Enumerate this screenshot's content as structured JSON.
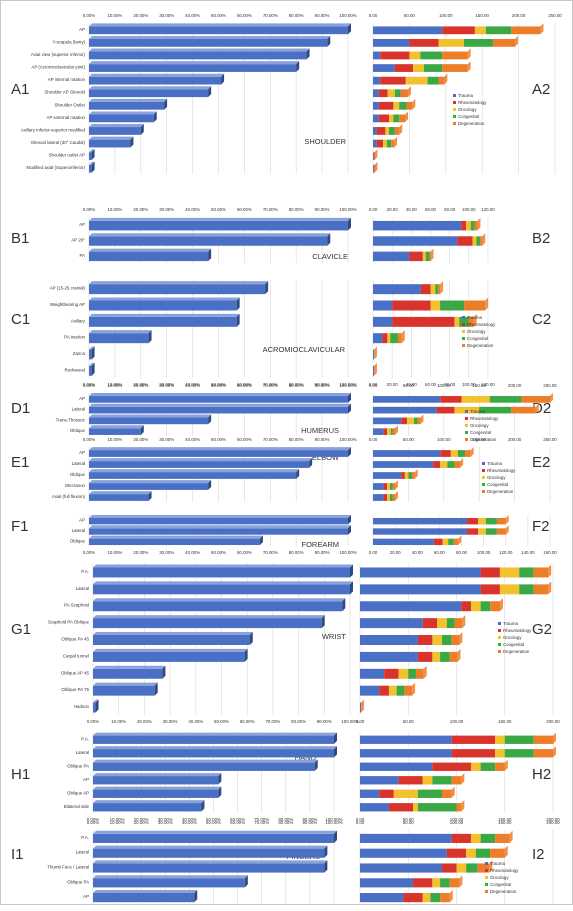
{
  "colors": {
    "bar": "#4a70c6",
    "bar_top": "#7b98dc",
    "bar_side": "#2c4a8c",
    "grid": "#d8d8d8",
    "text": "#333333",
    "trauma": "#4a70c6",
    "rheumatology": "#d9342b",
    "oncology": "#f2c12e",
    "congenital": "#3aa845",
    "degeneration": "#ee7d28"
  },
  "chart_data": [
    {
      "type": "bar",
      "panel": "A1",
      "title": "SHOULDER",
      "orientation": "horizontal",
      "categories": [
        "AP",
        "Y-scapula (lamy)",
        "Axial view (superior inferior)",
        "AP (Acromioclavicular joint)",
        "AP internal rotation",
        "Shoulder AP Glenoid",
        "Shoulder Outlet",
        "AP external rotation",
        "Axillary Inferior-superior modified",
        "Glenoid lateral (30° Caudal)",
        "Shoulder outlet AP",
        "Modified axial (Superoinferior)"
      ],
      "values": [
        100,
        92,
        84,
        80,
        51,
        46,
        29,
        25,
        20,
        16,
        1,
        1
      ],
      "xlim": [
        0,
        100
      ],
      "tick_labels": [
        "0.00%",
        "10.00%",
        "20.00%",
        "30.00%",
        "40.00%",
        "50.00%",
        "60.00%",
        "70.00%",
        "80.00%",
        "90.00%",
        "100.00%"
      ]
    },
    {
      "type": "bar",
      "panel": "A2",
      "stacked": true,
      "orientation": "horizontal",
      "categories": [
        "AP",
        "Y-scapula (lamy)",
        "Axial view (superior inferior)",
        "AP (Acromioclavicular joint)",
        "AP internal rotation",
        "Shoulder AP Glenoid",
        "Shoulder Outlet",
        "AP external rotation",
        "Axillary Inferior-superior modified",
        "Glenoid lateral (30° Caudal)",
        "Shoulder outlet AP",
        "Modified axial (Superoinferior)"
      ],
      "series": [
        {
          "name": "Trauma",
          "values": [
            95,
            50,
            10,
            30,
            10,
            8,
            8,
            8,
            5,
            5,
            1,
            1
          ]
        },
        {
          "name": "Rheumatology",
          "values": [
            45,
            40,
            40,
            25,
            35,
            12,
            20,
            14,
            12,
            9,
            1,
            1
          ]
        },
        {
          "name": "Oncology",
          "values": [
            15,
            35,
            15,
            15,
            30,
            10,
            8,
            6,
            5,
            5,
            0,
            0
          ]
        },
        {
          "name": "Congenital",
          "values": [
            35,
            40,
            30,
            25,
            15,
            8,
            10,
            8,
            8,
            6,
            0,
            0
          ]
        },
        {
          "name": "Degeneration",
          "values": [
            40,
            30,
            35,
            35,
            8,
            10,
            8,
            8,
            6,
            4,
            0,
            0
          ]
        }
      ],
      "xlim": [
        0,
        250
      ],
      "tick_labels": [
        "0.00",
        "50.00",
        "100.00",
        "150.00",
        "200.00",
        "250.00"
      ],
      "legend": "right"
    },
    {
      "type": "bar",
      "panel": "B1",
      "title": "CLAVICLE",
      "orientation": "horizontal",
      "categories": [
        "AP",
        "AP 20°",
        "PA"
      ],
      "values": [
        100,
        92,
        46
      ],
      "xlim": [
        0,
        100
      ],
      "tick_labels": [
        "0.00%",
        "10.00%",
        "20.00%",
        "30.00%",
        "40.00%",
        "50.00%",
        "60.00%",
        "70.00%",
        "80.00%",
        "90.00%",
        "100.00%"
      ]
    },
    {
      "type": "bar",
      "panel": "B2",
      "stacked": true,
      "orientation": "horizontal",
      "categories": [
        "AP",
        "AP 20°",
        "PA"
      ],
      "series": [
        {
          "name": "Trauma",
          "values": [
            92,
            88,
            38
          ]
        },
        {
          "name": "Rheumatology",
          "values": [
            5,
            16,
            14
          ]
        },
        {
          "name": "Oncology",
          "values": [
            5,
            4,
            3
          ]
        },
        {
          "name": "Congenital",
          "values": [
            4,
            4,
            4
          ]
        },
        {
          "name": "Degeneration",
          "values": [
            3,
            2,
            1
          ]
        }
      ],
      "xlim": [
        0,
        120
      ],
      "tick_labels": [
        "0.00",
        "20.00",
        "40.00",
        "60.00",
        "80.00",
        "100.00",
        "120.00"
      ]
    },
    {
      "type": "bar",
      "panel": "C1",
      "title": "ACROMIOCLAVICULAR",
      "orientation": "horizontal",
      "categories": [
        "AP (15-25 cranial)",
        "Weightbearing AP",
        "Axillary",
        "PA traction",
        "Zanca",
        "Rockwood"
      ],
      "values": [
        68,
        57,
        57,
        23,
        1,
        1
      ],
      "xlim": [
        0,
        100
      ],
      "tick_labels": [
        "0.00%",
        "10.00%",
        "20.00%",
        "30.00%",
        "40.00%",
        "50.00%",
        "60.00%",
        "70.00%",
        "80.00%",
        "90.00%",
        "100.00%"
      ]
    },
    {
      "type": "bar",
      "panel": "C2",
      "stacked": true,
      "orientation": "horizontal",
      "categories": [
        "AP (15-25 cranial)",
        "Weightbearing AP",
        "Axillary",
        "PA traction",
        "Zanca",
        "Rockwood"
      ],
      "series": [
        {
          "name": "Trauma",
          "values": [
            50,
            20,
            20,
            10,
            1,
            1
          ]
        },
        {
          "name": "Rheumatology",
          "values": [
            10,
            40,
            65,
            5,
            0,
            0
          ]
        },
        {
          "name": "Oncology",
          "values": [
            5,
            10,
            5,
            3,
            0,
            0
          ]
        },
        {
          "name": "Congenital",
          "values": [
            3,
            25,
            10,
            8,
            0,
            0
          ]
        },
        {
          "name": "Degeneration",
          "values": [
            2,
            22,
            5,
            4,
            0,
            0
          ]
        }
      ],
      "xlim": [
        0,
        120
      ],
      "tick_labels": [
        "0.00",
        "20.00",
        "40.00",
        "60.00",
        "80.00",
        "100.00",
        "120.00"
      ],
      "legend": "right"
    },
    {
      "type": "bar",
      "panel": "D1",
      "title": "HUMERUS",
      "orientation": "horizontal",
      "categories": [
        "AP",
        "Lateral",
        "Trans-Thoracic",
        "Oblique"
      ],
      "values": [
        100,
        100,
        46,
        20
      ],
      "xlim": [
        0,
        100
      ],
      "tick_labels": [
        "0.00%",
        "10.00%",
        "20.00%",
        "30.00%",
        "40.00%",
        "50.00%",
        "60.00%",
        "70.00%",
        "80.00%",
        "90.00%",
        "100.00%"
      ]
    },
    {
      "type": "bar",
      "panel": "D2",
      "stacked": true,
      "orientation": "horizontal",
      "categories": [
        "AP",
        "Lateral",
        "Trans-Thoracic",
        "Oblique"
      ],
      "series": [
        {
          "name": "Trauma",
          "values": [
            95,
            90,
            40,
            15
          ]
        },
        {
          "name": "Rheumatology",
          "values": [
            30,
            25,
            8,
            5
          ]
        },
        {
          "name": "Oncology",
          "values": [
            40,
            35,
            10,
            5
          ]
        },
        {
          "name": "Congenital",
          "values": [
            45,
            45,
            5,
            3
          ]
        },
        {
          "name": "Degeneration",
          "values": [
            40,
            35,
            4,
            3
          ]
        }
      ],
      "xlim": [
        0,
        250
      ],
      "tick_labels": [
        "0.00",
        "50.00",
        "100.00",
        "150.00",
        "200.00",
        "250.00"
      ],
      "legend": "right"
    },
    {
      "type": "bar",
      "panel": "E1",
      "title": "ELBOW",
      "orientation": "horizontal",
      "categories": [
        "AP",
        "Lateral",
        "Oblique",
        "Olecranon",
        "Axial (full flexion)"
      ],
      "values": [
        100,
        85,
        80,
        46,
        23
      ],
      "xlim": [
        0,
        100
      ],
      "tick_labels": [
        "0.00%",
        "10.00%",
        "20.00%",
        "30.00%",
        "40.00%",
        "50.00%",
        "60.00%",
        "70.00%",
        "80.00%",
        "90.00%",
        "100.00%"
      ]
    },
    {
      "type": "bar",
      "panel": "E2",
      "stacked": true,
      "orientation": "horizontal",
      "categories": [
        "AP",
        "Lateral",
        "Oblique",
        "Olecranon",
        "Axial (full flexion)"
      ],
      "series": [
        {
          "name": "Trauma",
          "values": [
            95,
            85,
            40,
            15,
            15
          ]
        },
        {
          "name": "Rheumatology",
          "values": [
            15,
            10,
            5,
            5,
            5
          ]
        },
        {
          "name": "Oncology",
          "values": [
            10,
            10,
            5,
            4,
            4
          ]
        },
        {
          "name": "Congenital",
          "values": [
            10,
            10,
            5,
            4,
            4
          ]
        },
        {
          "name": "Degeneration",
          "values": [
            8,
            8,
            4,
            3,
            3
          ]
        }
      ],
      "xlim": [
        0,
        250
      ],
      "tick_labels": [
        "0.00",
        "50.00",
        "100.00",
        "150.00",
        "200.00",
        "250.00"
      ],
      "legend": "right"
    },
    {
      "type": "bar",
      "panel": "F1",
      "title": "FOREARM",
      "orientation": "horizontal",
      "categories": [
        "AP",
        "Lateral",
        "Oblique"
      ],
      "values": [
        100,
        100,
        66
      ],
      "xlim": [
        0,
        100
      ],
      "tick_labels": [
        "0.00%",
        "10.00%",
        "20.00%",
        "30.00%",
        "40.00%",
        "50.00%",
        "60.00%",
        "70.00%",
        "80.00%",
        "90.00%",
        "100.00%"
      ]
    },
    {
      "type": "bar",
      "panel": "F2",
      "stacked": true,
      "orientation": "horizontal",
      "categories": [
        "AP",
        "Lateral",
        "Oblique"
      ],
      "series": [
        {
          "name": "Trauma",
          "values": [
            85,
            85,
            55
          ]
        },
        {
          "name": "Rheumatology",
          "values": [
            10,
            10,
            8
          ]
        },
        {
          "name": "Oncology",
          "values": [
            7,
            7,
            5
          ]
        },
        {
          "name": "Congenital",
          "values": [
            10,
            10,
            5
          ]
        },
        {
          "name": "Degeneration",
          "values": [
            8,
            8,
            4
          ]
        }
      ],
      "xlim": [
        0,
        160
      ],
      "tick_labels": [
        "0.00",
        "20.00",
        "40.00",
        "60.00",
        "80.00",
        "100.00",
        "120.00",
        "140.00",
        "160.00"
      ]
    },
    {
      "type": "bar",
      "panel": "G1",
      "title": "WRIST",
      "orientation": "horizontal",
      "categories": [
        "P.A.",
        "Lateral",
        "PA Scaphoid",
        "Scaphoid PA Oblique",
        "Oblique PA 45",
        "Carpal tunnel",
        "Oblique AP 45",
        "Oblique PA 75",
        "Hadson"
      ],
      "values": [
        100,
        100,
        97,
        89,
        61,
        59,
        27,
        24,
        1
      ],
      "xlim": [
        0,
        100
      ],
      "tick_labels": [
        "0.00%",
        "10.00%",
        "20.00%",
        "30.00%",
        "40.00%",
        "50.00%",
        "60.00%",
        "70.00%",
        "80.00%",
        "90.00%",
        "100.00%"
      ]
    },
    {
      "type": "bar",
      "panel": "G2",
      "stacked": true,
      "orientation": "horizontal",
      "categories": [
        "P.A.",
        "Lateral",
        "PA Scaphoid",
        "Scaphoid PA Oblique",
        "Oblique PA 45",
        "Carpal tunnel",
        "Oblique AP 45",
        "Oblique PA 75",
        "Hadson"
      ],
      "series": [
        {
          "name": "Trauma",
          "values": [
            125,
            125,
            105,
            65,
            60,
            60,
            25,
            20,
            1
          ]
        },
        {
          "name": "Rheumatology",
          "values": [
            20,
            20,
            10,
            15,
            15,
            15,
            15,
            10,
            0
          ]
        },
        {
          "name": "Oncology",
          "values": [
            20,
            20,
            10,
            10,
            10,
            8,
            10,
            8,
            0
          ]
        },
        {
          "name": "Congenital",
          "values": [
            15,
            15,
            10,
            8,
            10,
            10,
            8,
            8,
            0
          ]
        },
        {
          "name": "Degeneration",
          "values": [
            15,
            15,
            10,
            8,
            8,
            8,
            8,
            8,
            0
          ]
        }
      ],
      "xlim": [
        0,
        200
      ],
      "tick_labels": [
        "0.00",
        "50.00",
        "100.00",
        "150.00",
        "200.00"
      ],
      "legend": "right"
    },
    {
      "type": "bar",
      "panel": "H1",
      "title": "HAND",
      "orientation": "horizontal",
      "categories": [
        "P.A.",
        "Lateral",
        "Oblique PA",
        "AP",
        "Oblique AP",
        "Bilateral side"
      ],
      "values": [
        100,
        100,
        92,
        52,
        52,
        45
      ],
      "xlim": [
        0,
        100
      ],
      "tick_labels": [
        "0.00%",
        "10.00%",
        "20.00%",
        "30.00%",
        "40.00%",
        "50.00%",
        "60.00%",
        "70.00%",
        "80.00%",
        "90.00%",
        "100.00%"
      ]
    },
    {
      "type": "bar",
      "panel": "H2",
      "stacked": true,
      "orientation": "horizontal",
      "categories": [
        "P.A.",
        "Lateral",
        "Oblique PA",
        "AP",
        "Oblique AP",
        "Bilateral side"
      ],
      "series": [
        {
          "name": "Trauma",
          "values": [
            95,
            95,
            75,
            40,
            20,
            30
          ]
        },
        {
          "name": "Rheumatology",
          "values": [
            45,
            45,
            40,
            25,
            15,
            25
          ]
        },
        {
          "name": "Oncology",
          "values": [
            10,
            10,
            10,
            10,
            25,
            5
          ]
        },
        {
          "name": "Congenital",
          "values": [
            30,
            30,
            15,
            20,
            25,
            40
          ]
        },
        {
          "name": "Degeneration",
          "values": [
            20,
            20,
            10,
            10,
            10,
            5
          ]
        }
      ],
      "xlim": [
        0,
        200
      ],
      "tick_labels": [
        "0.00",
        "50.00",
        "100.00",
        "150.00",
        "200.00"
      ]
    },
    {
      "type": "bar",
      "panel": "I1",
      "title": "FINGERS",
      "orientation": "horizontal",
      "categories": [
        "P.A.",
        "Lateral",
        "Thumb Face / Lateral",
        "Oblique PA",
        "AP"
      ],
      "values": [
        100,
        96,
        96,
        63,
        42
      ],
      "xlim": [
        0,
        100
      ],
      "tick_labels": [
        "0.00%",
        "10.00%",
        "20.00%",
        "30.00%",
        "40.00%",
        "50.00%",
        "60.00%",
        "70.00%",
        "80.00%",
        "90.00%",
        "100.00%"
      ]
    },
    {
      "type": "bar",
      "panel": "I2",
      "stacked": true,
      "orientation": "horizontal",
      "categories": [
        "P.A.",
        "Lateral",
        "Thumb Face / Lateral",
        "Oblique PA",
        "AP"
      ],
      "series": [
        {
          "name": "Trauma",
          "values": [
            95,
            90,
            85,
            55,
            45
          ]
        },
        {
          "name": "Rheumatology",
          "values": [
            20,
            20,
            15,
            20,
            20
          ]
        },
        {
          "name": "Oncology",
          "values": [
            10,
            10,
            10,
            8,
            8
          ]
        },
        {
          "name": "Congenital",
          "values": [
            15,
            15,
            12,
            10,
            10
          ]
        },
        {
          "name": "Degeneration",
          "values": [
            15,
            15,
            12,
            10,
            10
          ]
        }
      ],
      "xlim": [
        0,
        200
      ],
      "tick_labels": [
        "0.00",
        "50.00",
        "100.00",
        "150.00",
        "200.00"
      ],
      "legend": "right"
    }
  ]
}
